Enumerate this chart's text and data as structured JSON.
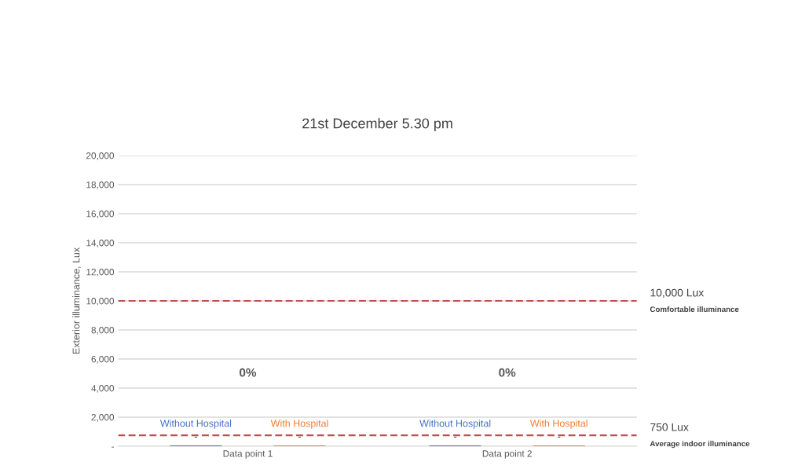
{
  "chart_data": {
    "type": "bar",
    "title": "21st December 5.30 pm",
    "ylabel": "Exterior illuminance, Lux",
    "categories": [
      "Data point 1",
      "Data point 2"
    ],
    "series": [
      {
        "name": "Without Hospital",
        "color": "#4472c4",
        "values": [
          0,
          0
        ],
        "value_labels": [
          "-",
          "-"
        ]
      },
      {
        "name": "With Hospital",
        "color": "#ed7d31",
        "values": [
          0,
          0
        ],
        "value_labels": [
          "-",
          "-"
        ]
      }
    ],
    "ylim": [
      0,
      20000
    ],
    "yticks": [
      {
        "value": 0,
        "label": "-"
      },
      {
        "value": 2000,
        "label": "2,000"
      },
      {
        "value": 4000,
        "label": "4,000"
      },
      {
        "value": 6000,
        "label": "6,000"
      },
      {
        "value": 8000,
        "label": "8,000"
      },
      {
        "value": 10000,
        "label": "10,000"
      },
      {
        "value": 12000,
        "label": "12,000"
      },
      {
        "value": 14000,
        "label": "14,000"
      },
      {
        "value": 16000,
        "label": "16,000"
      },
      {
        "value": 18000,
        "label": "18,000"
      },
      {
        "value": 20000,
        "label": "20,000"
      }
    ],
    "ref_lines": [
      {
        "axis": "y",
        "value": 10000,
        "label": "10,000 Lux",
        "color": "#c0504d",
        "line_style": "dashed"
      },
      {
        "axis": "y",
        "value": 750,
        "label": "750 Lux",
        "color": "#c0504d",
        "line_style": "dashed"
      }
    ],
    "annotations": [
      "Comfortable illuminance",
      "Average indoor illuminance",
      "0%",
      "0%"
    ],
    "grid": "y",
    "legend": false
  }
}
